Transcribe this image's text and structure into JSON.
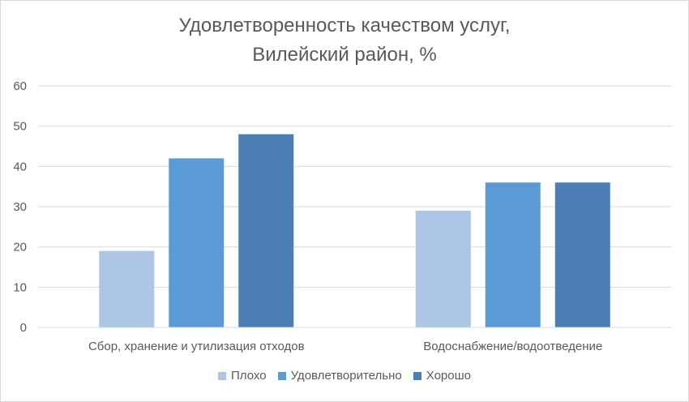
{
  "chart_data": {
    "type": "bar",
    "title_lines": [
      "Удовлетворенность качеством услуг,",
      "Вилейский район, %"
    ],
    "categories": [
      "Сбор, хранение и утилизация отходов",
      "Водоснабжение/водоотведение"
    ],
    "series": [
      {
        "name": "Плохо",
        "values": [
          19,
          29
        ],
        "color": "#adc6e5"
      },
      {
        "name": "Удовлетворительно",
        "values": [
          42,
          36
        ],
        "color": "#5b9bd5"
      },
      {
        "name": "Хорошо",
        "values": [
          48,
          36
        ],
        "color": "#4a7eb4"
      }
    ],
    "ylim": [
      0,
      60
    ],
    "yticks": [
      0,
      10,
      20,
      30,
      40,
      50,
      60
    ],
    "grid": true,
    "legend_position": "bottom",
    "xlabel": "",
    "ylabel": ""
  }
}
